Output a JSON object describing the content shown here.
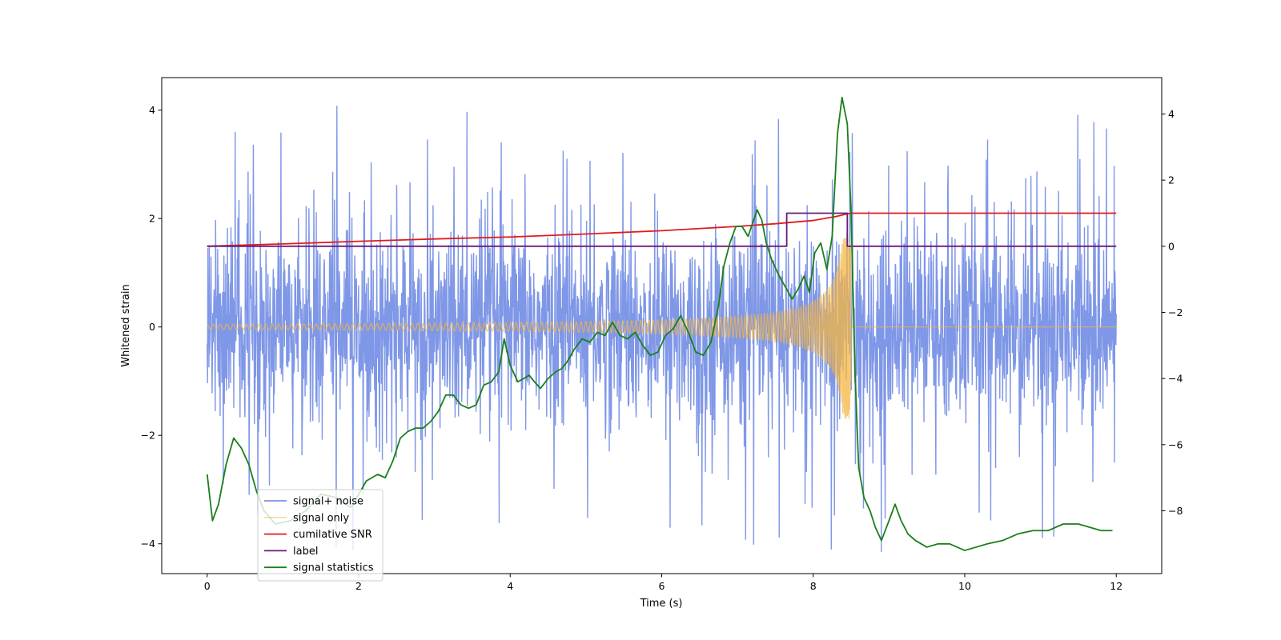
{
  "chart_data": {
    "type": "line",
    "title": "",
    "xlabel": "Time (s)",
    "ylabel": "Whitened strain",
    "xlim": [
      -0.6,
      12.6
    ],
    "ylim_left": [
      -4.55,
      4.6
    ],
    "ylim_right": [
      -9.9,
      5.1
    ],
    "x_ticks": [
      0,
      2,
      4,
      6,
      8,
      10,
      12
    ],
    "x_tick_labels": [
      "0",
      "2",
      "4",
      "6",
      "8",
      "10",
      "12"
    ],
    "y_left_ticks": [
      -4,
      -2,
      0,
      2,
      4
    ],
    "y_left_tick_labels": [
      "−4",
      "−2",
      "0",
      "2",
      "4"
    ],
    "y_right_ticks": [
      -8,
      -6,
      -4,
      -2,
      0,
      2,
      4
    ],
    "y_right_tick_labels": [
      "−8",
      "−6",
      "−4",
      "−2",
      "0",
      "2",
      "4"
    ],
    "legend_position": "lower-left",
    "series": [
      {
        "name": "signal+ noise",
        "axis": "left",
        "color": "#7891e6",
        "description": "noisy whitened strain, roughly Gaussian with std ~0.9 plus occasional spikes up to about 4.2",
        "x_range": [
          0,
          12
        ],
        "mean": 0,
        "std": 0.9,
        "max": 4.2,
        "min": -4.15
      },
      {
        "name": "signal only",
        "axis": "left",
        "color": "#f5b642",
        "description": "chirp signal whose amplitude grows from ~0.05 to ~1.7 before merger near 8.5 s, then zero",
        "x_range": [
          0,
          12
        ],
        "merger_time": 8.5,
        "amplitude_start": 0.05,
        "amplitude_peak": 1.7
      },
      {
        "name": "cumilative SNR",
        "axis": "right",
        "color": "#e31a1c",
        "x": [
          0,
          1,
          2,
          3,
          4,
          5,
          6,
          7,
          7.5,
          8,
          8.3,
          8.45,
          8.5,
          12
        ],
        "y": [
          0,
          0.07,
          0.15,
          0.22,
          0.28,
          0.37,
          0.47,
          0.6,
          0.68,
          0.78,
          0.9,
          0.98,
          1.0,
          1.0
        ]
      },
      {
        "name": "label",
        "axis": "right",
        "color": "#6a1b7a",
        "x": [
          0,
          7.65,
          7.65,
          8.45,
          8.45,
          12
        ],
        "y": [
          0,
          0,
          1,
          1,
          0,
          0
        ]
      },
      {
        "name": "signal statistics",
        "axis": "right",
        "color": "#1a7f1a",
        "x": [
          0,
          0.07,
          0.15,
          0.25,
          0.35,
          0.45,
          0.55,
          0.65,
          0.75,
          0.9,
          1.1,
          1.3,
          1.5,
          1.7,
          1.9,
          2.1,
          2.25,
          2.35,
          2.45,
          2.55,
          2.65,
          2.75,
          2.85,
          2.95,
          3.05,
          3.15,
          3.25,
          3.35,
          3.45,
          3.55,
          3.65,
          3.75,
          3.85,
          3.92,
          4.0,
          4.1,
          4.18,
          4.25,
          4.32,
          4.4,
          4.5,
          4.6,
          4.68,
          4.75,
          4.85,
          4.95,
          5.05,
          5.15,
          5.25,
          5.35,
          5.45,
          5.55,
          5.65,
          5.75,
          5.85,
          5.95,
          6.05,
          6.15,
          6.25,
          6.35,
          6.45,
          6.55,
          6.65,
          6.75,
          6.82,
          6.9,
          6.98,
          7.06,
          7.14,
          7.2,
          7.26,
          7.32,
          7.38,
          7.45,
          7.55,
          7.65,
          7.72,
          7.8,
          7.88,
          7.95,
          8.02,
          8.1,
          8.18,
          8.25,
          8.32,
          8.38,
          8.45,
          8.5,
          8.55,
          8.6,
          8.67,
          8.75,
          8.82,
          8.9,
          9.0,
          9.08,
          9.16,
          9.25,
          9.35,
          9.5,
          9.65,
          9.8,
          10.0,
          10.15,
          10.3,
          10.5,
          10.7,
          10.9,
          11.1,
          11.3,
          11.5,
          11.65,
          11.8,
          11.95
        ],
        "y": [
          -6.9,
          -8.3,
          -7.8,
          -6.6,
          -5.8,
          -6.1,
          -6.6,
          -7.4,
          -8.0,
          -8.4,
          -8.3,
          -8.0,
          -7.5,
          -7.6,
          -7.9,
          -7.1,
          -6.9,
          -7.0,
          -6.5,
          -5.8,
          -5.6,
          -5.5,
          -5.5,
          -5.3,
          -5.0,
          -4.5,
          -4.5,
          -4.8,
          -4.9,
          -4.8,
          -4.2,
          -4.1,
          -3.8,
          -2.8,
          -3.6,
          -4.1,
          -4.0,
          -3.9,
          -4.1,
          -4.3,
          -4.0,
          -3.8,
          -3.7,
          -3.5,
          -3.1,
          -2.8,
          -2.9,
          -2.6,
          -2.7,
          -2.3,
          -2.7,
          -2.8,
          -2.6,
          -3.0,
          -3.3,
          -3.2,
          -2.7,
          -2.5,
          -2.1,
          -2.6,
          -3.2,
          -3.3,
          -2.9,
          -1.8,
          -0.6,
          0.1,
          0.6,
          0.6,
          0.3,
          0.7,
          1.1,
          0.8,
          0.1,
          -0.4,
          -0.9,
          -1.3,
          -1.6,
          -1.3,
          -0.9,
          -1.4,
          -0.2,
          0.1,
          -0.7,
          0.3,
          3.4,
          4.5,
          3.7,
          1.0,
          -3.7,
          -6.7,
          -7.6,
          -8.0,
          -8.5,
          -8.9,
          -8.3,
          -7.8,
          -8.3,
          -8.7,
          -8.9,
          -9.1,
          -9.0,
          -9.0,
          -9.2,
          -9.1,
          -9.0,
          -8.9,
          -8.7,
          -8.6,
          -8.6,
          -8.4,
          -8.4,
          -8.5,
          -8.6,
          -8.6
        ]
      }
    ]
  }
}
